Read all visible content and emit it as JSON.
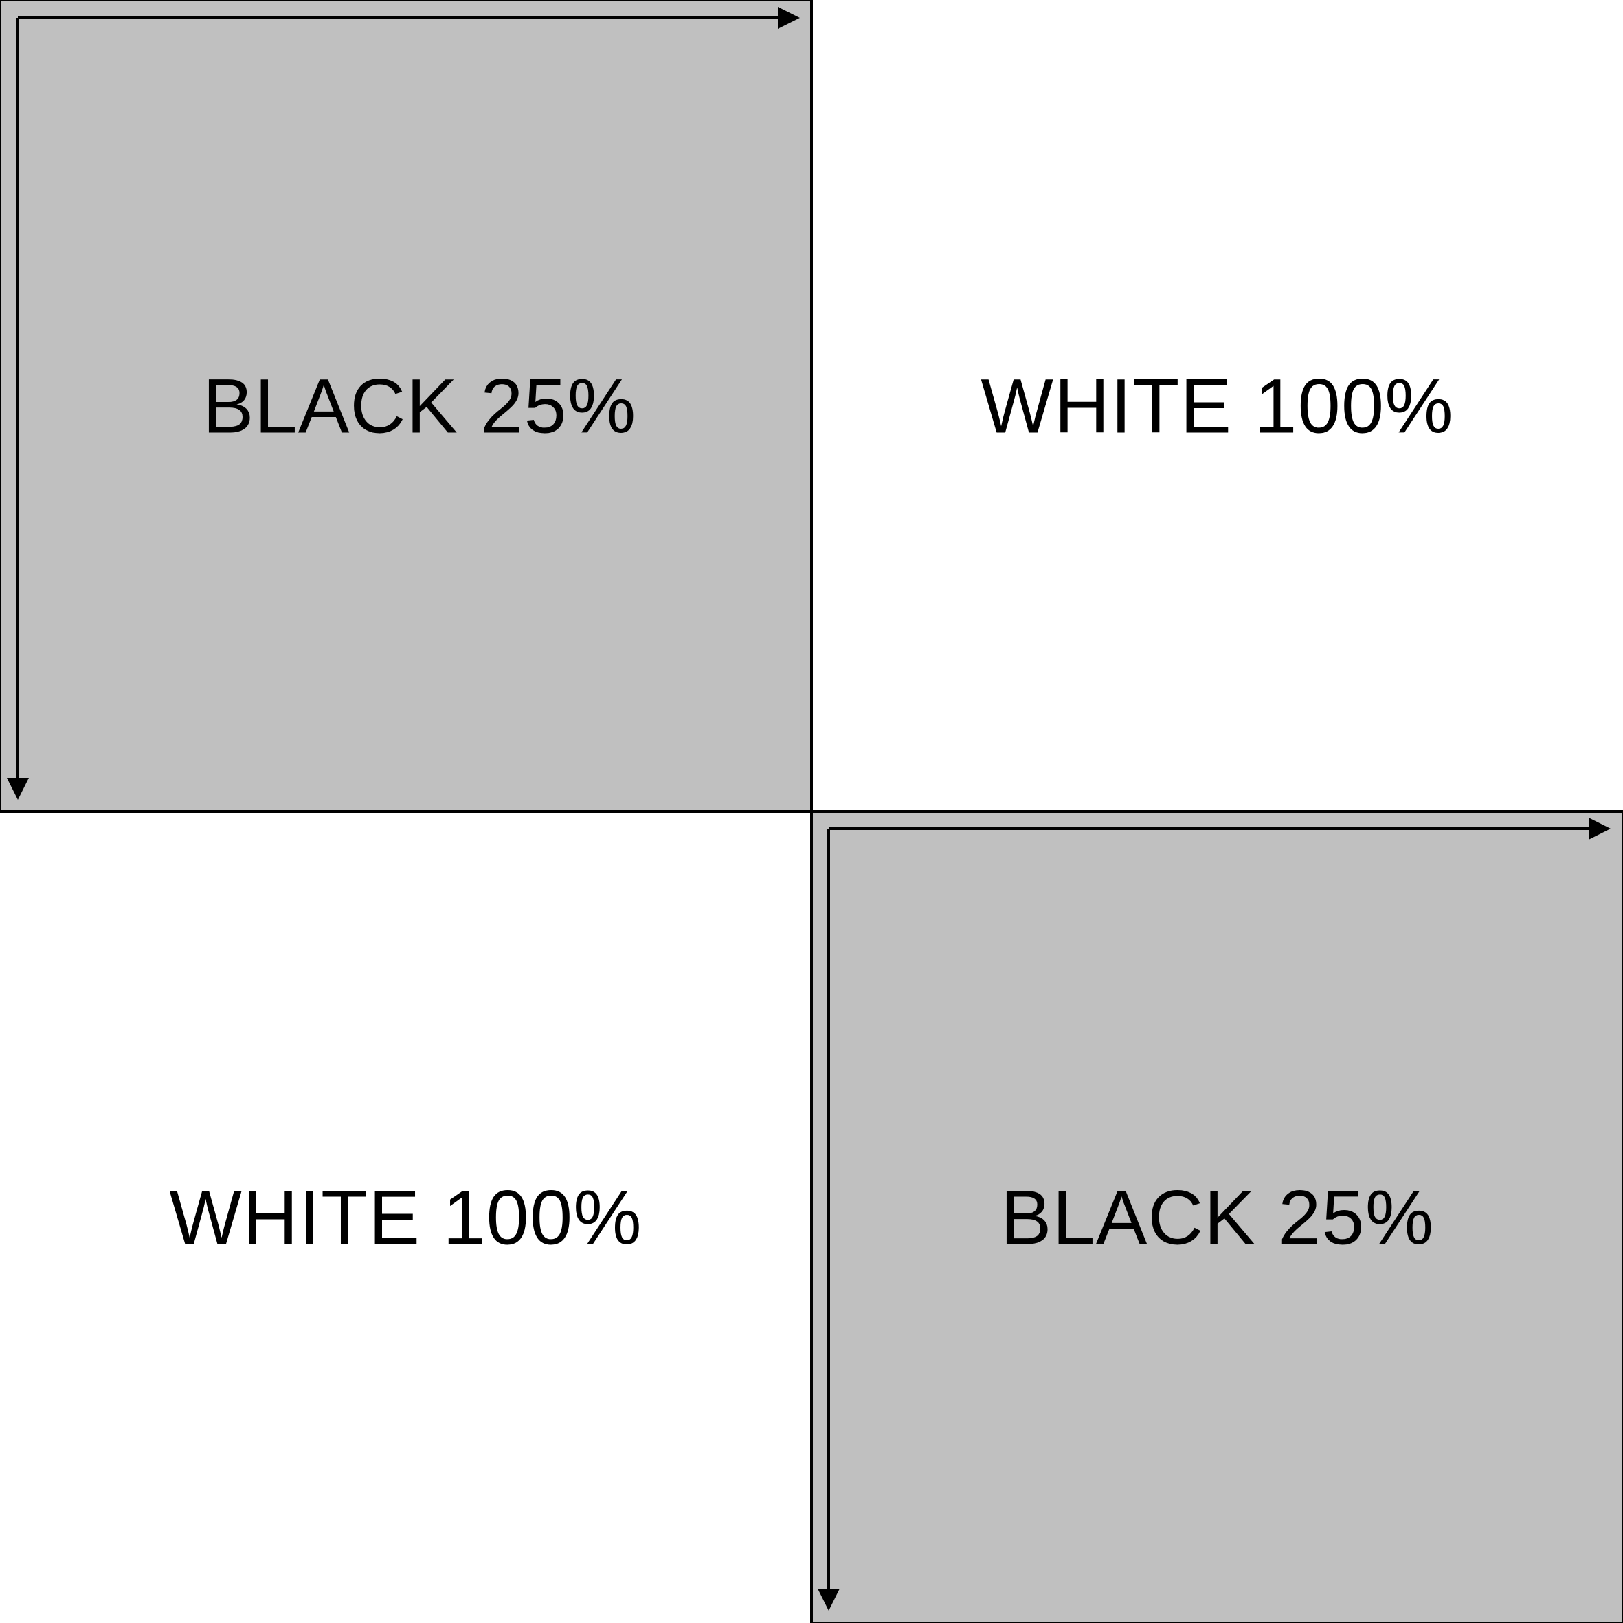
{
  "colors": {
    "gray": "#c0c0c0",
    "white": "#ffffff",
    "line": "#000000"
  },
  "quadrants": [
    {
      "position": "top-left",
      "label": "BLACK 25%",
      "fill": "gray"
    },
    {
      "position": "top-right",
      "label": "WHITE 100%",
      "fill": "white"
    },
    {
      "position": "bottom-left",
      "label": "WHITE 100%",
      "fill": "white"
    },
    {
      "position": "bottom-right",
      "label": "BLACK 25%",
      "fill": "gray"
    }
  ],
  "markers": {
    "arrow_icon": "arrow-right-icon / arrow-down-icon"
  }
}
